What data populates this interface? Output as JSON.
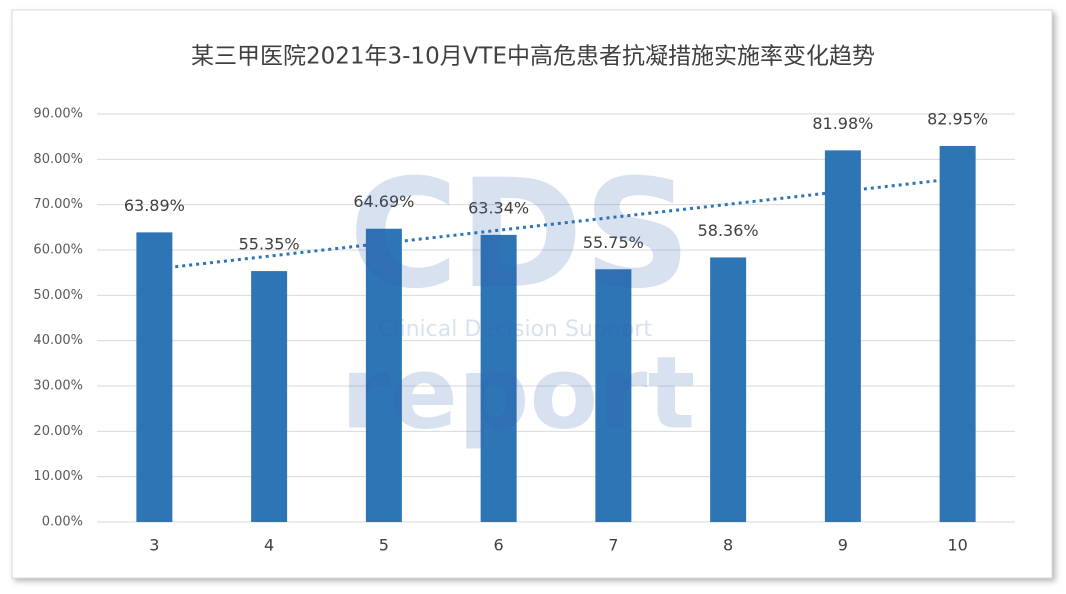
{
  "chart_data": {
    "type": "bar",
    "title": "某三甲医院2021年3-10月VTE中高危患者抗凝措施实施率变化趋势",
    "categories": [
      "3",
      "4",
      "5",
      "6",
      "7",
      "8",
      "9",
      "10"
    ],
    "values": [
      63.89,
      55.35,
      64.69,
      63.34,
      55.75,
      58.36,
      81.98,
      82.95
    ],
    "value_labels": [
      "63.89%",
      "55.35%",
      "64.69%",
      "63.34%",
      "55.75%",
      "58.36%",
      "81.98%",
      "82.95%"
    ],
    "color": "#2e75b6",
    "ylim": [
      0,
      90
    ],
    "yticks": [
      {
        "value": 0,
        "label": "0.00%"
      },
      {
        "value": 10,
        "label": "10.00%"
      },
      {
        "value": 20,
        "label": "20.00%"
      },
      {
        "value": 30,
        "label": "30.00%"
      },
      {
        "value": 40,
        "label": "40.00%"
      },
      {
        "value": 50,
        "label": "50.00%"
      },
      {
        "value": 60,
        "label": "60.00%"
      },
      {
        "value": 70,
        "label": "70.00%"
      },
      {
        "value": 80,
        "label": "80.00%"
      },
      {
        "value": 90,
        "label": "90.00%"
      }
    ],
    "grid": true,
    "trendline": "linear",
    "watermark": {
      "logo": "CDS",
      "subtitle": "Clinical Decision Support",
      "text": "report"
    }
  }
}
